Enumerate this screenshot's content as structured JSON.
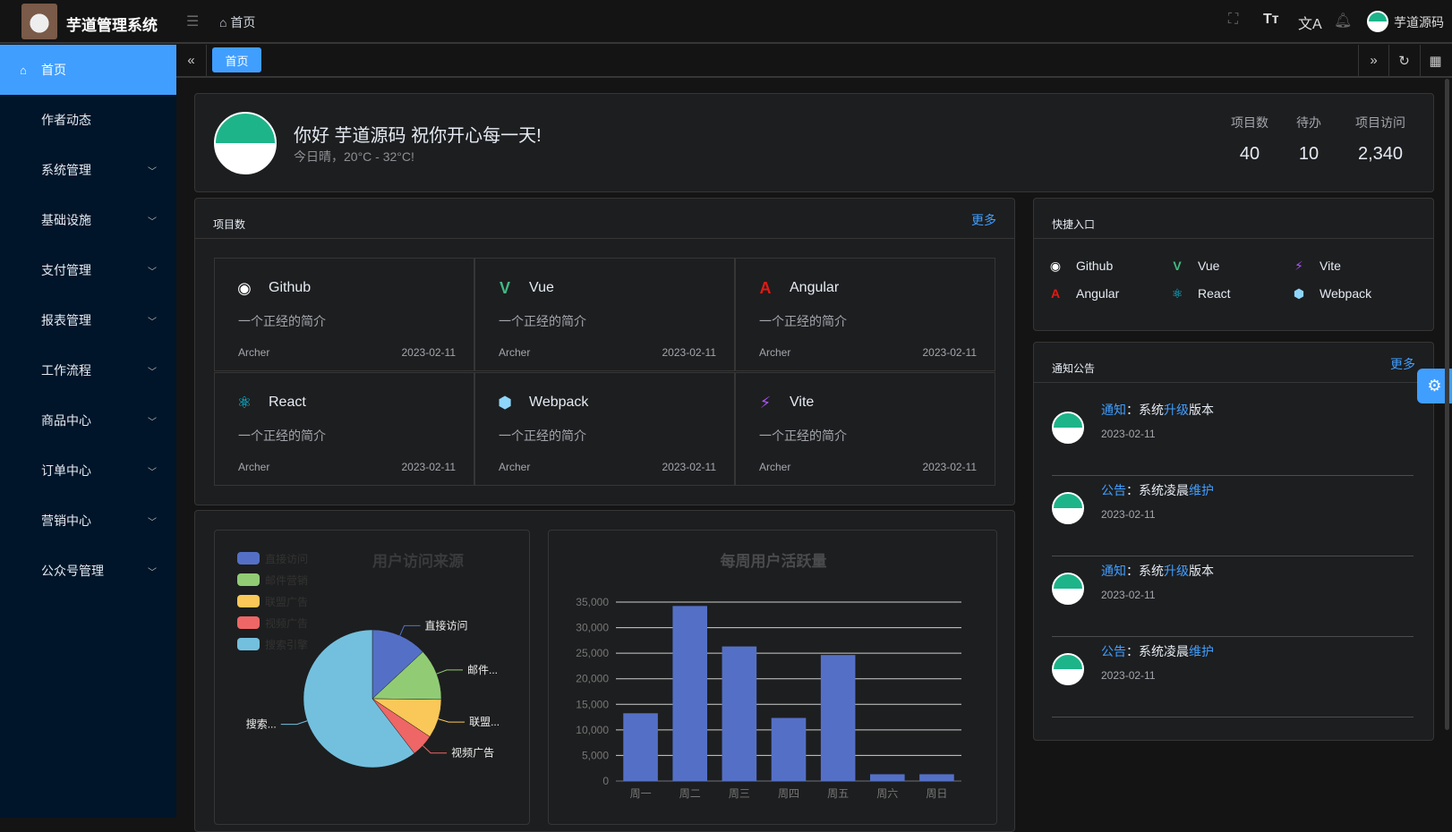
{
  "header": {
    "app_title": "芋道管理系统",
    "breadcrumb": "首页",
    "username": "芋道源码",
    "icons": [
      "menu-fold-icon",
      "home-icon",
      "fullscreen-icon",
      "font-size-icon",
      "translate-icon",
      "bell-icon"
    ]
  },
  "sidebar": {
    "items": [
      {
        "label": "首页",
        "active": true,
        "icon": "home-icon"
      },
      {
        "label": "作者动态"
      },
      {
        "label": "系统管理",
        "expandable": true
      },
      {
        "label": "基础设施",
        "expandable": true
      },
      {
        "label": "支付管理",
        "expandable": true
      },
      {
        "label": "报表管理",
        "expandable": true
      },
      {
        "label": "工作流程",
        "expandable": true
      },
      {
        "label": "商品中心",
        "expandable": true
      },
      {
        "label": "订单中心",
        "expandable": true
      },
      {
        "label": "营销中心",
        "expandable": true
      },
      {
        "label": "公众号管理",
        "expandable": true
      }
    ]
  },
  "tabs": {
    "items": [
      {
        "label": "首页",
        "active": true
      }
    ]
  },
  "welcome": {
    "greeting": "你好 芋道源码 祝你开心每一天!",
    "weather": "今日晴，20°C - 32°C!",
    "stats": [
      {
        "label": "项目数",
        "value": "40"
      },
      {
        "label": "待办",
        "value": "10"
      },
      {
        "label": "项目访问",
        "value": "2,340"
      }
    ]
  },
  "projects": {
    "title": "项目数",
    "more": "更多",
    "items": [
      {
        "name": "Github",
        "desc": "一个正经的简介",
        "author": "Archer",
        "date": "2023-02-11",
        "icon": "github-icon",
        "color": "#ffffff"
      },
      {
        "name": "Vue",
        "desc": "一个正经的简介",
        "author": "Archer",
        "date": "2023-02-11",
        "icon": "vue-icon",
        "color": "#42b883"
      },
      {
        "name": "Angular",
        "desc": "一个正经的简介",
        "author": "Archer",
        "date": "2023-02-11",
        "icon": "angular-icon",
        "color": "#dd1b16"
      },
      {
        "name": "React",
        "desc": "一个正经的简介",
        "author": "Archer",
        "date": "2023-02-11",
        "icon": "react-icon",
        "color": "#00d8ff"
      },
      {
        "name": "Webpack",
        "desc": "一个正经的简介",
        "author": "Archer",
        "date": "2023-02-11",
        "icon": "webpack-icon",
        "color": "#8ed6fb"
      },
      {
        "name": "Vite",
        "desc": "一个正经的简介",
        "author": "Archer",
        "date": "2023-02-11",
        "icon": "vite-icon",
        "color": "#a855f7"
      }
    ]
  },
  "quick": {
    "title": "快捷入口",
    "items": [
      {
        "name": "Github",
        "icon": "github-icon",
        "color": "#ffffff"
      },
      {
        "name": "Vue",
        "icon": "vue-icon",
        "color": "#42b883"
      },
      {
        "name": "Vite",
        "icon": "vite-icon",
        "color": "#a855f7"
      },
      {
        "name": "Angular",
        "icon": "angular-icon",
        "color": "#dd1b16"
      },
      {
        "name": "React",
        "icon": "react-icon",
        "color": "#00d8ff"
      },
      {
        "name": "Webpack",
        "icon": "webpack-icon",
        "color": "#8ed6fb"
      }
    ]
  },
  "notices": {
    "title": "通知公告",
    "more": "更多",
    "items": [
      {
        "type": "通知",
        "sep": "：",
        "pre": "系统",
        "hl": "升级",
        "post": "版本",
        "date": "2023-02-11"
      },
      {
        "type": "公告",
        "sep": "：",
        "pre": "系统凌晨",
        "hl": "维护",
        "post": "",
        "date": "2023-02-11"
      },
      {
        "type": "通知",
        "sep": "：",
        "pre": "系统",
        "hl": "升级",
        "post": "版本",
        "date": "2023-02-11"
      },
      {
        "type": "公告",
        "sep": "：",
        "pre": "系统凌晨",
        "hl": "维护",
        "post": "",
        "date": "2023-02-11"
      }
    ]
  },
  "accent": "#409eff",
  "chart_data": [
    {
      "type": "pie",
      "title": "用户访问来源",
      "legend_position": "top-left",
      "categories": [
        "直接访问",
        "邮件营销",
        "联盟广告",
        "视频广告",
        "搜索引擎"
      ],
      "labels": [
        "直接访问",
        "邮件...",
        "联盟...",
        "视频广告",
        "搜索..."
      ],
      "values": [
        335,
        310,
        234,
        135,
        1548
      ],
      "colors": [
        "#5470c6",
        "#91cc75",
        "#fac858",
        "#ee6666",
        "#73c0de"
      ]
    },
    {
      "type": "bar",
      "title": "每周用户活跃量",
      "categories": [
        "周一",
        "周二",
        "周三",
        "周四",
        "周五",
        "周六",
        "周日"
      ],
      "values": [
        13253,
        34235,
        26321,
        12340,
        24643,
        1322,
        1324
      ],
      "ylim": [
        0,
        35000
      ],
      "yticks": [
        "0",
        "5,000",
        "10,000",
        "15,000",
        "20,000",
        "25,000",
        "30,000",
        "35,000"
      ],
      "grid": true,
      "color": "#5470c6"
    }
  ]
}
